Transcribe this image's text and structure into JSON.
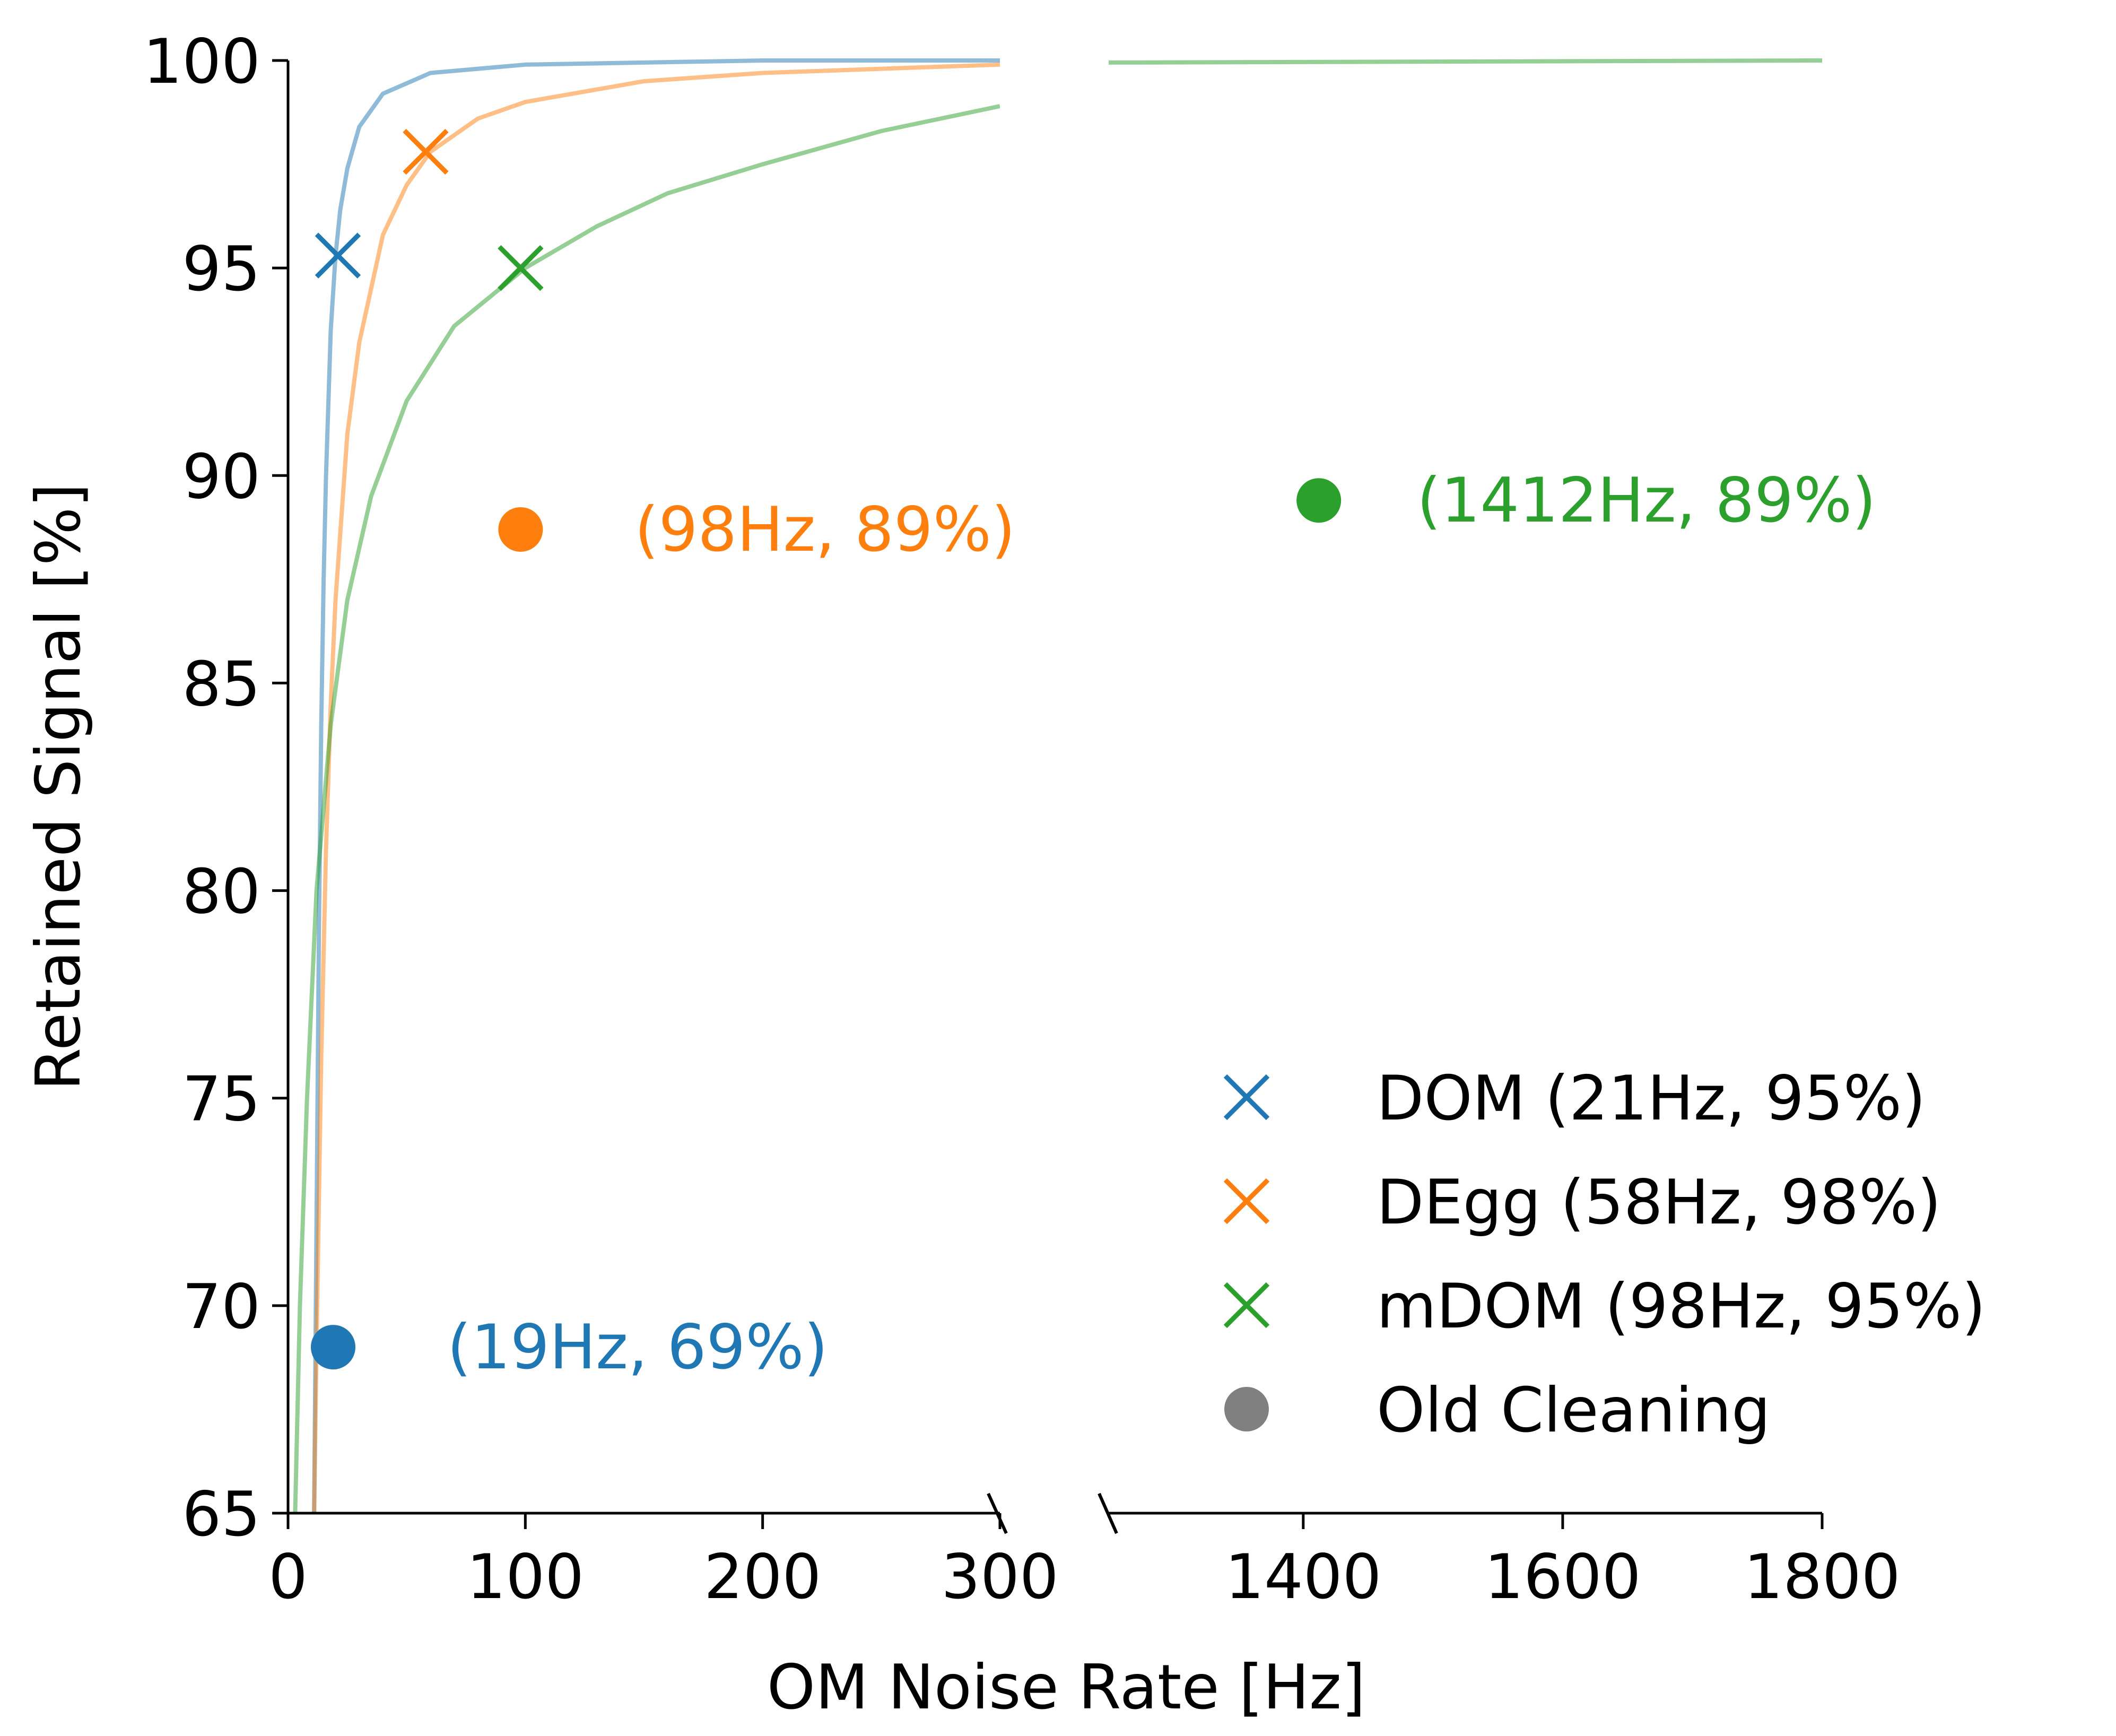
{
  "chart_data": {
    "type": "scatter",
    "title": "",
    "xlabel": "OM Noise Rate [Hz]",
    "ylabel": "Retained Signal [%]",
    "ylim": [
      65,
      100
    ],
    "x_left_range": [
      0,
      300
    ],
    "x_right_range": [
      1250,
      1800
    ],
    "x_ticks_left": [
      0,
      100,
      200,
      300
    ],
    "x_tick_labels_left": [
      "0",
      "100",
      "200",
      "300"
    ],
    "x_ticks_right": [
      1400,
      1600,
      1800
    ],
    "x_tick_labels_right": [
      "1400",
      "1600",
      "1800"
    ],
    "y_ticks": [
      65,
      70,
      75,
      80,
      85,
      90,
      95,
      100
    ],
    "y_tick_labels": [
      "65",
      "70",
      "75",
      "80",
      "85",
      "90",
      "95",
      "100"
    ],
    "colors": {
      "dom": "#1f77b4",
      "degg": "#ff7f0e",
      "mdom": "#2ca02c",
      "old": "#808080"
    },
    "series": [
      {
        "key": "dom",
        "name": "DOM (21Hz, 95%)",
        "color": "#1f77b4",
        "curve": [
          [
            11,
            65
          ],
          [
            12,
            72
          ],
          [
            13,
            79
          ],
          [
            14,
            84
          ],
          [
            15,
            87.5
          ],
          [
            16,
            90
          ],
          [
            18,
            93.5
          ],
          [
            20,
            95.3
          ],
          [
            22,
            96.4
          ],
          [
            25,
            97.4
          ],
          [
            30,
            98.4
          ],
          [
            40,
            99.2
          ],
          [
            60,
            99.7
          ],
          [
            100,
            99.9
          ],
          [
            200,
            100
          ],
          [
            300,
            100
          ]
        ],
        "x_marker": [
          21,
          95.3
        ],
        "old_point": [
          19,
          69
        ],
        "old_label": "(19Hz, 69%)"
      },
      {
        "key": "degg",
        "name": "DEgg (58Hz, 98%)",
        "color": "#ff7f0e",
        "curve": [
          [
            11,
            65
          ],
          [
            12,
            69
          ],
          [
            14,
            76
          ],
          [
            16,
            81
          ],
          [
            18,
            84.5
          ],
          [
            20,
            87
          ],
          [
            25,
            91
          ],
          [
            30,
            93.2
          ],
          [
            40,
            95.8
          ],
          [
            50,
            97
          ],
          [
            60,
            97.8
          ],
          [
            80,
            98.6
          ],
          [
            100,
            99
          ],
          [
            150,
            99.5
          ],
          [
            200,
            99.7
          ],
          [
            300,
            99.9
          ]
        ],
        "x_marker": [
          58,
          97.8
        ],
        "old_point": [
          98,
          88.7
        ],
        "old_label": "(98Hz, 89%)"
      },
      {
        "key": "mdom",
        "name": "mDOM (98Hz, 95%)",
        "color": "#2ca02c",
        "curve": [
          [
            3,
            65
          ],
          [
            5,
            70
          ],
          [
            8,
            75
          ],
          [
            12,
            80
          ],
          [
            18,
            84
          ],
          [
            25,
            87
          ],
          [
            35,
            89.5
          ],
          [
            50,
            91.8
          ],
          [
            70,
            93.6
          ],
          [
            100,
            95
          ],
          [
            130,
            96
          ],
          [
            160,
            96.8
          ],
          [
            200,
            97.5
          ],
          [
            250,
            98.3
          ],
          [
            300,
            98.9
          ]
        ],
        "curve_right": [
          [
            1250,
            99.95
          ],
          [
            1800,
            100
          ]
        ],
        "x_marker": [
          98,
          95
        ],
        "old_point": [
          1412,
          89.4
        ],
        "old_label": "(1412Hz, 89%)"
      }
    ],
    "legend": {
      "position": "lower-right",
      "entries": [
        {
          "label": "DOM (21Hz, 95%)",
          "marker": "x",
          "color": "#1f77b4"
        },
        {
          "label": "DEgg (58Hz, 98%)",
          "marker": "x",
          "color": "#ff7f0e"
        },
        {
          "label": "mDOM (98Hz, 95%)",
          "marker": "x",
          "color": "#2ca02c"
        },
        {
          "label": "Old Cleaning",
          "marker": "o",
          "color": "#808080"
        }
      ]
    }
  }
}
